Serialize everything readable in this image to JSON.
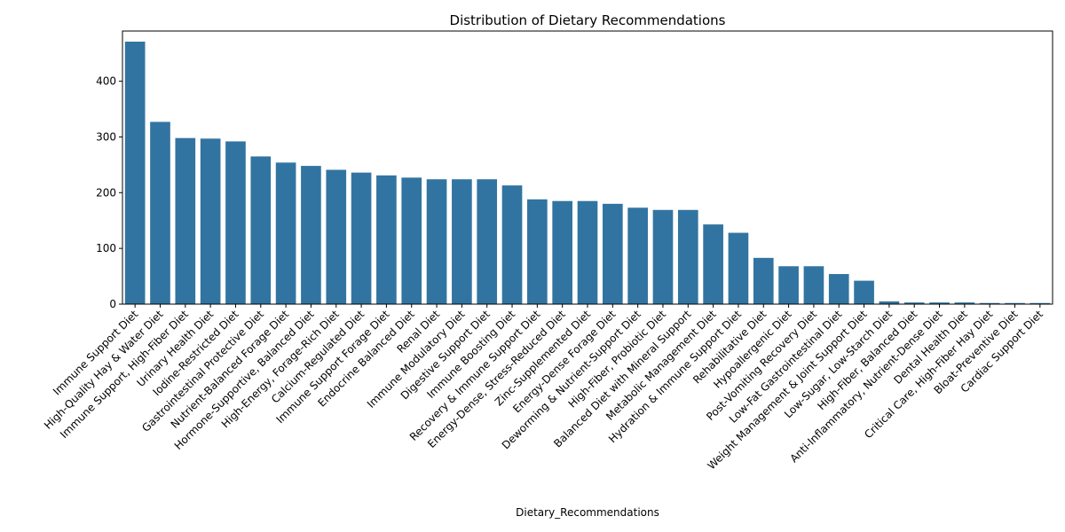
{
  "chart_data": {
    "type": "bar",
    "title": "Distribution of Dietary Recommendations",
    "xlabel": "Dietary_Recommendations",
    "ylabel": "",
    "ylim": [
      0,
      490
    ],
    "yticks": [
      0,
      100,
      200,
      300,
      400
    ],
    "grid": false,
    "bar_color": "#3274a1",
    "categories": [
      "Immune Support Diet",
      "High-Quality Hay & Water Diet",
      "Immune Support, High-Fiber Diet",
      "Urinary Health Diet",
      "Iodine-Restricted Diet",
      "Gastrointestinal Protective Diet",
      "Nutrient-Balanced Forage Diet",
      "Hormone-Supportive, Balanced Diet",
      "High-Energy, Forage-Rich Diet",
      "Calcium-Regulated Diet",
      "Immune Support Forage Diet",
      "Endocrine Balanced Diet",
      "Renal Diet",
      "Immune Modulatory Diet",
      "Digestive Support Diet",
      "Immune Boosting Diet",
      "Recovery & Immune Support Diet",
      "Energy-Dense, Stress-Reduced Diet",
      "Zinc-Supplemented Diet",
      "Energy-Dense Forage Diet",
      "Deworming & Nutrient-Support Diet",
      "High-Fiber, Probiotic Diet",
      "Balanced Diet with Mineral Support",
      "Metabolic Management Diet",
      "Hydration & Immune Support Diet",
      "Rehabilitative Diet",
      "Hypoallergenic Diet",
      "Post-Vomiting Recovery Diet",
      "Low-Fat Gastrointestinal Diet",
      "Weight Management & Joint Support Diet",
      "Low-Sugar, Low-Starch Diet",
      "High-Fiber, Balanced Diet",
      "Anti-Inflammatory, Nutrient-Dense Diet",
      "Dental Health Diet",
      "Critical Care, High-Fiber Hay Diet",
      "Bloat-Preventive Diet",
      "Cardiac Support Diet"
    ],
    "values": [
      471,
      327,
      298,
      297,
      292,
      265,
      254,
      248,
      241,
      236,
      231,
      227,
      224,
      224,
      224,
      213,
      188,
      185,
      185,
      180,
      173,
      169,
      169,
      143,
      128,
      83,
      68,
      68,
      54,
      42,
      5,
      3,
      3,
      3,
      2,
      2,
      2
    ]
  }
}
